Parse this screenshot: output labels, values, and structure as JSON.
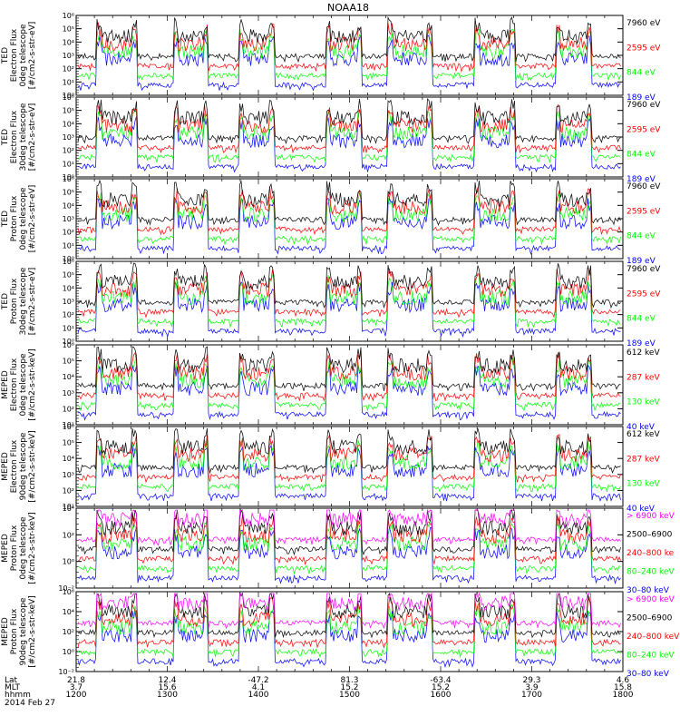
{
  "title": "NOAA18",
  "colors": {
    "black": "#000000",
    "blue": "#0000ff",
    "red": "#ff0000",
    "green": "#00ff00",
    "magenta": "#ff00ff"
  },
  "chart_data": {
    "type": "line",
    "x_range_hhmm": [
      "1200",
      "1800"
    ],
    "panels": [
      {
        "ylabel": [
          "TED",
          "Electron Flux",
          "0deg telescope",
          "[#/cm2-s-str-eV]"
        ],
        "yticks": [
          "10⁰",
          "10¹",
          "10²",
          "10³",
          "10⁴",
          "10⁵",
          "10⁶"
        ],
        "legend": [
          {
            "label": "7960 eV",
            "color": "#000000"
          },
          {
            "label": "2595 eV",
            "color": "#ff0000"
          },
          {
            "label": "844 eV",
            "color": "#00ff00"
          },
          {
            "label": "189 eV",
            "color": "#0000ff"
          }
        ]
      },
      {
        "ylabel": [
          "TED",
          "Electron Flux",
          "30deg telescope",
          "[#/cm2-s-str-eV]"
        ],
        "yticks": [
          "10⁰",
          "10¹",
          "10²",
          "10³",
          "10⁴",
          "10⁵",
          "10⁶"
        ],
        "legend": [
          {
            "label": "7960 eV",
            "color": "#000000"
          },
          {
            "label": "2595 eV",
            "color": "#ff0000"
          },
          {
            "label": "844 eV",
            "color": "#00ff00"
          },
          {
            "label": "189 eV",
            "color": "#0000ff"
          }
        ]
      },
      {
        "ylabel": [
          "TED",
          "Proton Flux",
          "0deg telescope",
          "[#/cm2-s-str-eV]"
        ],
        "yticks": [
          "10⁰",
          "10¹",
          "10²",
          "10³",
          "10⁴",
          "10⁵",
          "10⁶"
        ],
        "legend": [
          {
            "label": "7960 eV",
            "color": "#000000"
          },
          {
            "label": "2595 eV",
            "color": "#ff0000"
          },
          {
            "label": "844 eV",
            "color": "#00ff00"
          },
          {
            "label": "189 eV",
            "color": "#0000ff"
          }
        ]
      },
      {
        "ylabel": [
          "TED",
          "Proton Flux",
          "30deg telescope",
          "[#/cm2-s-str-eV]"
        ],
        "yticks": [
          "10⁰",
          "10¹",
          "10²",
          "10³",
          "10⁴",
          "10⁵",
          "10⁶"
        ],
        "legend": [
          {
            "label": "7960 eV",
            "color": "#000000"
          },
          {
            "label": "2595 eV",
            "color": "#ff0000"
          },
          {
            "label": "844 eV",
            "color": "#00ff00"
          },
          {
            "label": "189 eV",
            "color": "#0000ff"
          }
        ]
      },
      {
        "ylabel": [
          "MEPED",
          "Electron Flux",
          "0deg telescope",
          "[#/cm2-s-str-keV]"
        ],
        "yticks": [
          "10¹",
          "10²",
          "10³",
          "10⁴",
          "10⁵",
          "10⁶"
        ],
        "legend": [
          {
            "label": "612 keV",
            "color": "#000000"
          },
          {
            "label": "287 keV",
            "color": "#ff0000"
          },
          {
            "label": "130 keV",
            "color": "#00ff00"
          },
          {
            "label": "40 keV",
            "color": "#0000ff"
          }
        ]
      },
      {
        "ylabel": [
          "MEPED",
          "Electron Flux",
          "90deg telescope",
          "[#/cm2-s-str-keV]"
        ],
        "yticks": [
          "10¹",
          "10²",
          "10³",
          "10⁴",
          "10⁵",
          "10⁶"
        ],
        "legend": [
          {
            "label": "612 keV",
            "color": "#000000"
          },
          {
            "label": "287 keV",
            "color": "#ff0000"
          },
          {
            "label": "130 keV",
            "color": "#00ff00"
          },
          {
            "label": "40 keV",
            "color": "#0000ff"
          }
        ]
      },
      {
        "ylabel": [
          "MEPED",
          "Proton Flux",
          "0deg telescope",
          "[#/cm2-s-str-keV]"
        ],
        "yticks": [
          "10⁻²",
          "10⁰",
          "10²",
          "10⁴"
        ],
        "legend": [
          {
            "label": "> 6900 keV",
            "color": "#ff00ff"
          },
          {
            "label": "2500–6900",
            "color": "#000000"
          },
          {
            "label": "240–800 ke",
            "color": "#ff0000"
          },
          {
            "label": "80–240 keV",
            "color": "#00ff00"
          },
          {
            "label": "30–80 keV",
            "color": "#0000ff"
          }
        ]
      },
      {
        "ylabel": [
          "MEPED",
          "Proton Flux",
          "90deg telescope",
          "[#/cm2-s-str-keV]"
        ],
        "yticks": [
          "10⁻²",
          "10⁰",
          "10²",
          "10⁴",
          "10⁶"
        ],
        "legend": [
          {
            "label": "> 6900 keV",
            "color": "#ff00ff"
          },
          {
            "label": "2500–6900",
            "color": "#000000"
          },
          {
            "label": "240–800 keV",
            "color": "#ff0000"
          },
          {
            "label": "80–240 keV",
            "color": "#00ff00"
          },
          {
            "label": "30–80 keV",
            "color": "#0000ff"
          }
        ]
      }
    ],
    "x_axis": {
      "row_labels": [
        "Lat",
        "MLT",
        "hhmm"
      ],
      "ticks": [
        {
          "lat": "21.8",
          "mlt": "3.7",
          "hhmm": "1200"
        },
        {
          "lat": "12.4",
          "mlt": "15.6",
          "hhmm": "1300"
        },
        {
          "lat": "-47.2",
          "mlt": "4.1",
          "hhmm": "1400"
        },
        {
          "lat": "81.3",
          "mlt": "15.2",
          "hhmm": "1500"
        },
        {
          "lat": "-63.4",
          "mlt": "15.2",
          "hhmm": "1600"
        },
        {
          "lat": "29.3",
          "mlt": "3.9",
          "hhmm": "1700"
        },
        {
          "lat": "4.6",
          "mlt": "15.8",
          "hhmm": "1800"
        }
      ],
      "date": "2014 Feb 27"
    }
  }
}
